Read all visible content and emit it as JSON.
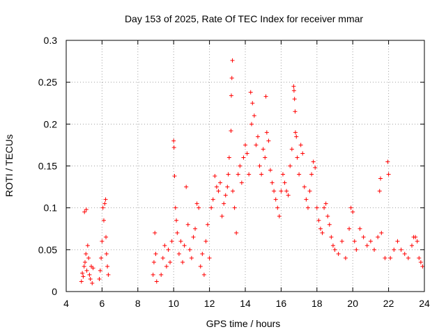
{
  "chart_data": {
    "type": "scatter",
    "title": "Day 153 of 2025, Rate Of TEC Index for receiver mmar",
    "xlabel": "GPS time / hours",
    "ylabel": "ROTI / TECUs",
    "xlim": [
      4,
      24
    ],
    "ylim": [
      0,
      0.3
    ],
    "xticks": [
      4,
      6,
      8,
      10,
      12,
      14,
      16,
      18,
      20,
      22,
      24
    ],
    "yticks": [
      0,
      0.05,
      0.1,
      0.15,
      0.2,
      0.25,
      0.3
    ],
    "ytick_labels": [
      "0",
      "0.05",
      "0.1",
      "0.15",
      "0.2",
      "0.25",
      "0.3"
    ],
    "grid": true,
    "marker": "plus",
    "color": "#ff0000",
    "points": [
      [
        4.85,
        0.012
      ],
      [
        4.9,
        0.022
      ],
      [
        4.95,
        0.018
      ],
      [
        5.0,
        0.03
      ],
      [
        5.02,
        0.095
      ],
      [
        5.05,
        0.035
      ],
      [
        5.1,
        0.045
      ],
      [
        5.12,
        0.098
      ],
      [
        5.15,
        0.025
      ],
      [
        5.2,
        0.055
      ],
      [
        5.25,
        0.04
      ],
      [
        5.3,
        0.02
      ],
      [
        5.35,
        0.015
      ],
      [
        5.4,
        0.03
      ],
      [
        5.45,
        0.01
      ],
      [
        5.5,
        0.028
      ],
      [
        5.85,
        0.015
      ],
      [
        5.9,
        0.025
      ],
      [
        5.95,
        0.04
      ],
      [
        6.0,
        0.06
      ],
      [
        6.05,
        0.1
      ],
      [
        6.1,
        0.085
      ],
      [
        6.15,
        0.105
      ],
      [
        6.2,
        0.11
      ],
      [
        6.22,
        0.065
      ],
      [
        6.25,
        0.045
      ],
      [
        6.3,
        0.03
      ],
      [
        6.35,
        0.02
      ],
      [
        8.85,
        0.02
      ],
      [
        8.9,
        0.035
      ],
      [
        8.95,
        0.07
      ],
      [
        9.0,
        0.045
      ],
      [
        9.05,
        0.012
      ],
      [
        9.3,
        0.02
      ],
      [
        9.4,
        0.04
      ],
      [
        9.5,
        0.055
      ],
      [
        9.6,
        0.03
      ],
      [
        9.7,
        0.05
      ],
      [
        9.8,
        0.035
      ],
      [
        9.9,
        0.06
      ],
      [
        10.0,
        0.18
      ],
      [
        10.02,
        0.172
      ],
      [
        10.05,
        0.138
      ],
      [
        10.1,
        0.1
      ],
      [
        10.15,
        0.085
      ],
      [
        10.2,
        0.07
      ],
      [
        10.3,
        0.045
      ],
      [
        10.4,
        0.06
      ],
      [
        10.5,
        0.035
      ],
      [
        10.6,
        0.055
      ],
      [
        10.7,
        0.125
      ],
      [
        10.8,
        0.08
      ],
      [
        10.9,
        0.05
      ],
      [
        11.0,
        0.04
      ],
      [
        11.1,
        0.065
      ],
      [
        11.2,
        0.075
      ],
      [
        11.3,
        0.105
      ],
      [
        11.4,
        0.1
      ],
      [
        11.5,
        0.03
      ],
      [
        11.6,
        0.045
      ],
      [
        11.7,
        0.02
      ],
      [
        11.8,
        0.06
      ],
      [
        11.9,
        0.08
      ],
      [
        12.0,
        0.04
      ],
      [
        12.1,
        0.1
      ],
      [
        12.2,
        0.11
      ],
      [
        12.3,
        0.138
      ],
      [
        12.4,
        0.125
      ],
      [
        12.5,
        0.12
      ],
      [
        12.6,
        0.13
      ],
      [
        12.7,
        0.09
      ],
      [
        12.8,
        0.105
      ],
      [
        12.9,
        0.115
      ],
      [
        13.0,
        0.125
      ],
      [
        13.05,
        0.14
      ],
      [
        13.1,
        0.16
      ],
      [
        13.2,
        0.192
      ],
      [
        13.22,
        0.234
      ],
      [
        13.25,
        0.255
      ],
      [
        13.28,
        0.276
      ],
      [
        13.3,
        0.12
      ],
      [
        13.4,
        0.1
      ],
      [
        13.5,
        0.07
      ],
      [
        13.6,
        0.14
      ],
      [
        13.7,
        0.15
      ],
      [
        13.8,
        0.13
      ],
      [
        13.9,
        0.16
      ],
      [
        14.0,
        0.175
      ],
      [
        14.1,
        0.165
      ],
      [
        14.2,
        0.14
      ],
      [
        14.3,
        0.238
      ],
      [
        14.35,
        0.2
      ],
      [
        14.4,
        0.225
      ],
      [
        14.5,
        0.21
      ],
      [
        14.6,
        0.175
      ],
      [
        14.7,
        0.185
      ],
      [
        14.8,
        0.15
      ],
      [
        14.9,
        0.14
      ],
      [
        15.0,
        0.17
      ],
      [
        15.1,
        0.16
      ],
      [
        15.15,
        0.233
      ],
      [
        15.2,
        0.19
      ],
      [
        15.3,
        0.18
      ],
      [
        15.4,
        0.145
      ],
      [
        15.5,
        0.13
      ],
      [
        15.6,
        0.12
      ],
      [
        15.7,
        0.11
      ],
      [
        15.8,
        0.1
      ],
      [
        15.9,
        0.09
      ],
      [
        16.0,
        0.12
      ],
      [
        16.1,
        0.14
      ],
      [
        16.2,
        0.13
      ],
      [
        16.3,
        0.12
      ],
      [
        16.4,
        0.115
      ],
      [
        16.5,
        0.15
      ],
      [
        16.6,
        0.17
      ],
      [
        16.7,
        0.245
      ],
      [
        16.72,
        0.24
      ],
      [
        16.75,
        0.23
      ],
      [
        16.78,
        0.215
      ],
      [
        16.8,
        0.19
      ],
      [
        16.85,
        0.185
      ],
      [
        16.9,
        0.16
      ],
      [
        17.0,
        0.14
      ],
      [
        17.1,
        0.175
      ],
      [
        17.2,
        0.165
      ],
      [
        17.3,
        0.125
      ],
      [
        17.4,
        0.11
      ],
      [
        17.5,
        0.1
      ],
      [
        17.6,
        0.12
      ],
      [
        17.7,
        0.14
      ],
      [
        17.8,
        0.155
      ],
      [
        17.9,
        0.148
      ],
      [
        18.0,
        0.1
      ],
      [
        18.1,
        0.085
      ],
      [
        18.2,
        0.075
      ],
      [
        18.3,
        0.07
      ],
      [
        18.4,
        0.1
      ],
      [
        18.5,
        0.105
      ],
      [
        18.6,
        0.09
      ],
      [
        18.7,
        0.08
      ],
      [
        18.8,
        0.065
      ],
      [
        18.9,
        0.055
      ],
      [
        19.0,
        0.05
      ],
      [
        19.2,
        0.045
      ],
      [
        19.4,
        0.06
      ],
      [
        19.6,
        0.04
      ],
      [
        19.8,
        0.075
      ],
      [
        19.9,
        0.1
      ],
      [
        20.0,
        0.095
      ],
      [
        20.1,
        0.06
      ],
      [
        20.2,
        0.05
      ],
      [
        20.4,
        0.075
      ],
      [
        20.6,
        0.065
      ],
      [
        20.8,
        0.055
      ],
      [
        21.0,
        0.06
      ],
      [
        21.2,
        0.05
      ],
      [
        21.4,
        0.065
      ],
      [
        21.5,
        0.12
      ],
      [
        21.55,
        0.135
      ],
      [
        21.6,
        0.07
      ],
      [
        21.8,
        0.04
      ],
      [
        21.95,
        0.155
      ],
      [
        22.0,
        0.14
      ],
      [
        22.1,
        0.04
      ],
      [
        22.3,
        0.05
      ],
      [
        22.5,
        0.06
      ],
      [
        22.7,
        0.05
      ],
      [
        22.9,
        0.045
      ],
      [
        23.1,
        0.04
      ],
      [
        23.3,
        0.055
      ],
      [
        23.4,
        0.065
      ],
      [
        23.5,
        0.065
      ],
      [
        23.6,
        0.06
      ],
      [
        23.7,
        0.04
      ],
      [
        23.8,
        0.035
      ],
      [
        23.9,
        0.03
      ]
    ]
  }
}
